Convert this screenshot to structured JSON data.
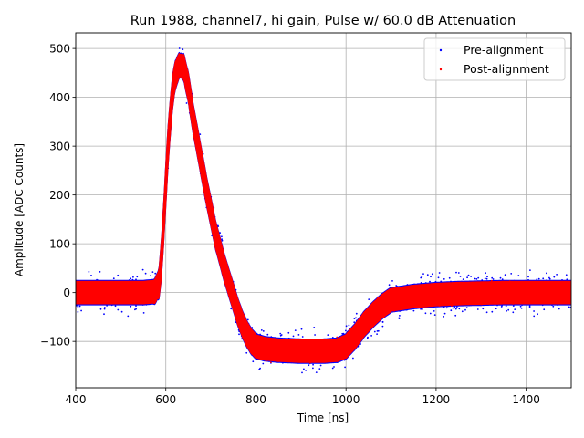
{
  "chart_data": {
    "type": "scatter",
    "title": "Run 1988, channel7, hi gain, Pulse w/ 60.0 dB Attenuation",
    "xlabel": "Time [ns]",
    "ylabel": "Amplitude [ADC Counts]",
    "xlim": [
      400,
      1500
    ],
    "ylim": [
      -195,
      532
    ],
    "xticks": [
      400,
      600,
      800,
      1000,
      1200,
      1400
    ],
    "yticks": [
      -100,
      0,
      100,
      200,
      300,
      400,
      500
    ],
    "ytick_labels": [
      "−100",
      "0",
      "100",
      "200",
      "300",
      "400",
      "500"
    ],
    "grid": true,
    "legend_position": "top-right",
    "series": [
      {
        "name": "Pre-alignment",
        "color": "#0000ff",
        "marker": "dot",
        "x": [
          400,
          450,
          500,
          550,
          575,
          585,
          590,
          595,
          600,
          605,
          610,
          615,
          620,
          625,
          630,
          635,
          640,
          645,
          650,
          655,
          660,
          670,
          680,
          690,
          700,
          710,
          720,
          730,
          740,
          750,
          760,
          770,
          780,
          790,
          800,
          820,
          850,
          900,
          950,
          980,
          1000,
          1020,
          1040,
          1060,
          1080,
          1100,
          1150,
          1200,
          1250,
          1300,
          1350,
          1400,
          1450,
          1500
        ],
        "y": [
          0,
          0,
          0,
          0,
          2,
          20,
          70,
          140,
          220,
          300,
          360,
          410,
          440,
          455,
          465,
          465,
          460,
          440,
          420,
          390,
          360,
          310,
          260,
          210,
          165,
          120,
          85,
          50,
          20,
          -10,
          -40,
          -65,
          -85,
          -100,
          -110,
          -115,
          -118,
          -120,
          -120,
          -118,
          -110,
          -90,
          -65,
          -45,
          -28,
          -15,
          -8,
          -4,
          -2,
          -1,
          0,
          0,
          0,
          0
        ],
        "band_halfwidth": 26,
        "outlier_spread": 42
      },
      {
        "name": "Post-alignment",
        "color": "#ff0000",
        "marker": "dot",
        "x": [
          400,
          450,
          500,
          550,
          575,
          585,
          590,
          595,
          600,
          605,
          610,
          615,
          620,
          625,
          630,
          635,
          640,
          645,
          650,
          655,
          660,
          670,
          680,
          690,
          700,
          710,
          720,
          730,
          740,
          750,
          760,
          770,
          780,
          790,
          800,
          820,
          850,
          900,
          950,
          980,
          1000,
          1020,
          1040,
          1060,
          1080,
          1100,
          1150,
          1200,
          1250,
          1300,
          1350,
          1400,
          1450,
          1500
        ],
        "y": [
          0,
          0,
          0,
          0,
          2,
          20,
          70,
          140,
          220,
          300,
          360,
          410,
          440,
          455,
          465,
          465,
          460,
          440,
          420,
          390,
          360,
          310,
          260,
          210,
          165,
          120,
          85,
          50,
          20,
          -10,
          -40,
          -65,
          -85,
          -100,
          -110,
          -115,
          -118,
          -120,
          -120,
          -118,
          -110,
          -90,
          -65,
          -45,
          -28,
          -15,
          -8,
          -4,
          -2,
          -1,
          0,
          0,
          0,
          0
        ],
        "band_halfwidth": 24
      }
    ]
  }
}
